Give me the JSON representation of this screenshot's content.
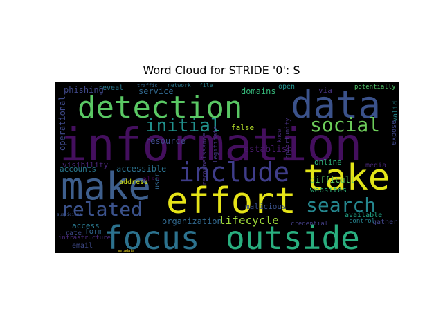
{
  "chart_data": {
    "type": "wordcloud",
    "title": "Word Cloud for STRIDE '0': S",
    "background": "#000000",
    "colormap": "viridis",
    "words": [
      {
        "text": "information",
        "color": "#440f5e"
      },
      {
        "text": "detection",
        "color": "#5ac864"
      },
      {
        "text": "data",
        "color": "#3b528b"
      },
      {
        "text": "make",
        "color": "#3e5f8d"
      },
      {
        "text": "effort",
        "color": "#e6e418"
      },
      {
        "text": "take",
        "color": "#e2e418"
      },
      {
        "text": "focus",
        "color": "#2c728e"
      },
      {
        "text": "outside",
        "color": "#29af7f"
      },
      {
        "text": "include",
        "color": "#3f3d8a"
      },
      {
        "text": "social",
        "color": "#6dcc5a"
      },
      {
        "text": "search",
        "color": "#25868e"
      },
      {
        "text": "related",
        "color": "#3b528b"
      },
      {
        "text": "initial",
        "color": "#21918c"
      },
      {
        "text": "lifecycle",
        "color": "#a0da39"
      },
      {
        "text": "organization",
        "color": "#31688e"
      },
      {
        "text": "resource",
        "color": "#3e4a89"
      },
      {
        "text": "establish",
        "color": "#481a6c"
      },
      {
        "text": "operational",
        "color": "#3e4989"
      },
      {
        "text": "phishing",
        "color": "#3f4788"
      },
      {
        "text": "service",
        "color": "#31688e"
      },
      {
        "text": "domains",
        "color": "#35b779"
      },
      {
        "text": "reveal",
        "color": "#2a788e"
      },
      {
        "text": "open",
        "color": "#21918c"
      },
      {
        "text": "via",
        "color": "#46327e"
      },
      {
        "text": "potentially",
        "color": "#52c569"
      },
      {
        "text": "valid",
        "color": "#23888e"
      },
      {
        "text": "visibility",
        "color": "#482575"
      },
      {
        "text": "accounts",
        "color": "#2a788e"
      },
      {
        "text": "accessible",
        "color": "#2c728e"
      },
      {
        "text": "false",
        "color": "#b5de2b"
      },
      {
        "text": "malicious",
        "color": "#3b528b"
      },
      {
        "text": "online",
        "color": "#2fb47c"
      },
      {
        "text": "media",
        "color": "#482878"
      },
      {
        "text": "expose",
        "color": "#3f4889"
      },
      {
        "text": "difficult",
        "color": "#5ec962"
      },
      {
        "text": "websites",
        "color": "#2fb47c"
      },
      {
        "text": "form",
        "color": "#31688e"
      },
      {
        "text": "access",
        "color": "#2a788e"
      },
      {
        "text": "address",
        "color": "#d0e11c"
      },
      {
        "text": "also",
        "color": "#440154"
      },
      {
        "text": "user",
        "color": "#31688e"
      },
      {
        "text": "rate",
        "color": "#3e4989"
      },
      {
        "text": "infrastructure",
        "color": "#482878"
      },
      {
        "text": "email",
        "color": "#3e4a89"
      },
      {
        "text": "available",
        "color": "#20a386"
      },
      {
        "text": "gather",
        "color": "#414487"
      },
      {
        "text": "control",
        "color": "#26828e"
      },
      {
        "text": "credential",
        "color": "#433e85"
      },
      {
        "text": "reconnaissance",
        "color": "#46327e"
      },
      {
        "text": "legitimate",
        "color": "#443983"
      },
      {
        "text": "opportunity",
        "color": "#46327e"
      },
      {
        "text": "know",
        "color": "#482878"
      },
      {
        "text": "network",
        "color": "#2a788e"
      },
      {
        "text": "file",
        "color": "#26828e"
      },
      {
        "text": "traffic",
        "color": "#31688e"
      },
      {
        "text": "suspicious",
        "color": "#3b528b"
      },
      {
        "text": "metadata",
        "color": "#fde725"
      }
    ]
  }
}
